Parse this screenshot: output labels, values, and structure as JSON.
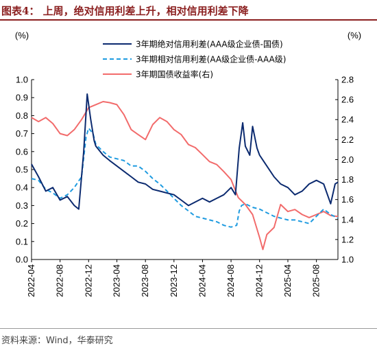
{
  "title": "图表4：  上周，绝对信用利差上升，相对信用利差下降",
  "source": "资料来源：Wind，华泰研究",
  "colors": {
    "abs_spread": "#0B2A6F",
    "rel_spread": "#1E9BE0",
    "gov_yield": "#F26B6B",
    "title": "#8B1F1F"
  },
  "chart_data": {
    "type": "line",
    "y_left_unit": "(%)",
    "y_right_unit": "(%)",
    "ylim_left": [
      0,
      1.0
    ],
    "ylim_right": [
      1.0,
      2.8
    ],
    "y_left_ticks": [
      "0.0",
      "0.1",
      "0.2",
      "0.3",
      "0.4",
      "0.5",
      "0.6",
      "0.7",
      "0.8",
      "0.9",
      "1.0"
    ],
    "y_right_ticks": [
      "1.0",
      "1.2",
      "1.4",
      "1.6",
      "1.8",
      "2.0",
      "2.2",
      "2.4",
      "2.6",
      "2.8"
    ],
    "x_range": [
      "2022-04",
      "2025-11"
    ],
    "x_ticks": [
      "2022-04",
      "2022-08",
      "2022-12",
      "2023-04",
      "2023-08",
      "2023-12",
      "2024-04",
      "2024-08",
      "2024-12",
      "2025-04",
      "2025-08"
    ],
    "legend_placement": "top-right",
    "series": [
      {
        "name": "3年期绝对信用利差(AAA级企业债-国债)",
        "axis": "left",
        "style": "solid",
        "points": [
          [
            "2022-04",
            0.53
          ],
          [
            "2022-05",
            0.46
          ],
          [
            "2022-06",
            0.38
          ],
          [
            "2022-07",
            0.4
          ],
          [
            "2022-08",
            0.33
          ],
          [
            "2022-09",
            0.35
          ],
          [
            "2022-10",
            0.3
          ],
          [
            "2022-10-20",
            0.28
          ],
          [
            "2022-11-10",
            0.6
          ],
          [
            "2022-11-25",
            0.92
          ],
          [
            "2022-12-10",
            0.78
          ],
          [
            "2022-12-25",
            0.66
          ],
          [
            "2023-01",
            0.63
          ],
          [
            "2023-02",
            0.58
          ],
          [
            "2023-03",
            0.55
          ],
          [
            "2023-04",
            0.52
          ],
          [
            "2023-05",
            0.49
          ],
          [
            "2023-06",
            0.46
          ],
          [
            "2023-07",
            0.43
          ],
          [
            "2023-08",
            0.42
          ],
          [
            "2023-09",
            0.39
          ],
          [
            "2023-10",
            0.38
          ],
          [
            "2023-11",
            0.37
          ],
          [
            "2023-12",
            0.36
          ],
          [
            "2024-01",
            0.33
          ],
          [
            "2024-02",
            0.3
          ],
          [
            "2024-03",
            0.32
          ],
          [
            "2024-04",
            0.34
          ],
          [
            "2024-05",
            0.32
          ],
          [
            "2024-06",
            0.34
          ],
          [
            "2024-07",
            0.36
          ],
          [
            "2024-08",
            0.4
          ],
          [
            "2024-08-20",
            0.36
          ],
          [
            "2024-09-05",
            0.62
          ],
          [
            "2024-09-20",
            0.76
          ],
          [
            "2024-10",
            0.63
          ],
          [
            "2024-10-20",
            0.58
          ],
          [
            "2024-11",
            0.74
          ],
          [
            "2024-11-20",
            0.62
          ],
          [
            "2024-12",
            0.58
          ],
          [
            "2025-01",
            0.52
          ],
          [
            "2025-02",
            0.46
          ],
          [
            "2025-03",
            0.42
          ],
          [
            "2025-04",
            0.4
          ],
          [
            "2025-05",
            0.36
          ],
          [
            "2025-06",
            0.38
          ],
          [
            "2025-07",
            0.42
          ],
          [
            "2025-08",
            0.44
          ],
          [
            "2025-09",
            0.42
          ],
          [
            "2025-10",
            0.31
          ],
          [
            "2025-10-20",
            0.42
          ],
          [
            "2025-11",
            0.43
          ]
        ]
      },
      {
        "name": "3年期相对信用利差(AA级企业债-AAA级)",
        "axis": "left",
        "style": "dashed",
        "points": [
          [
            "2022-04",
            0.45
          ],
          [
            "2022-05",
            0.44
          ],
          [
            "2022-06",
            0.39
          ],
          [
            "2022-07",
            0.37
          ],
          [
            "2022-08",
            0.34
          ],
          [
            "2022-09",
            0.36
          ],
          [
            "2022-10",
            0.4
          ],
          [
            "2022-11",
            0.46
          ],
          [
            "2022-11-20",
            0.68
          ],
          [
            "2022-12",
            0.73
          ],
          [
            "2022-12-20",
            0.7
          ],
          [
            "2023-01",
            0.64
          ],
          [
            "2023-02",
            0.6
          ],
          [
            "2023-03",
            0.57
          ],
          [
            "2023-04",
            0.56
          ],
          [
            "2023-05",
            0.55
          ],
          [
            "2023-06",
            0.52
          ],
          [
            "2023-07",
            0.52
          ],
          [
            "2023-08",
            0.49
          ],
          [
            "2023-09",
            0.45
          ],
          [
            "2023-10",
            0.42
          ],
          [
            "2023-11",
            0.38
          ],
          [
            "2023-12",
            0.34
          ],
          [
            "2024-01",
            0.3
          ],
          [
            "2024-02",
            0.27
          ],
          [
            "2024-03",
            0.24
          ],
          [
            "2024-04",
            0.23
          ],
          [
            "2024-05",
            0.22
          ],
          [
            "2024-06",
            0.21
          ],
          [
            "2024-07",
            0.19
          ],
          [
            "2024-08",
            0.18
          ],
          [
            "2024-08-25",
            0.19
          ],
          [
            "2024-09-05",
            0.27
          ],
          [
            "2024-09-15",
            0.3
          ],
          [
            "2024-10",
            0.31
          ],
          [
            "2024-11",
            0.29
          ],
          [
            "2024-12",
            0.28
          ],
          [
            "2025-01",
            0.26
          ],
          [
            "2025-02",
            0.24
          ],
          [
            "2025-03",
            0.23
          ],
          [
            "2025-04",
            0.22
          ],
          [
            "2025-05",
            0.22
          ],
          [
            "2025-06",
            0.21
          ],
          [
            "2025-07",
            0.2
          ],
          [
            "2025-08",
            0.24
          ],
          [
            "2025-09",
            0.28
          ],
          [
            "2025-10",
            0.25
          ],
          [
            "2025-11",
            0.23
          ]
        ]
      },
      {
        "name": "3年期国债收益率(右)",
        "axis": "right",
        "style": "solid",
        "points": [
          [
            "2022-04",
            2.42
          ],
          [
            "2022-05",
            2.38
          ],
          [
            "2022-06",
            2.42
          ],
          [
            "2022-07",
            2.36
          ],
          [
            "2022-08",
            2.26
          ],
          [
            "2022-09",
            2.24
          ],
          [
            "2022-10",
            2.3
          ],
          [
            "2022-11",
            2.4
          ],
          [
            "2022-12",
            2.52
          ],
          [
            "2023-01",
            2.55
          ],
          [
            "2023-02",
            2.58
          ],
          [
            "2023-03",
            2.57
          ],
          [
            "2023-04",
            2.55
          ],
          [
            "2023-05",
            2.45
          ],
          [
            "2023-06",
            2.3
          ],
          [
            "2023-07",
            2.25
          ],
          [
            "2023-08",
            2.2
          ],
          [
            "2023-09",
            2.35
          ],
          [
            "2023-10",
            2.42
          ],
          [
            "2023-11",
            2.38
          ],
          [
            "2023-12",
            2.3
          ],
          [
            "2024-01",
            2.25
          ],
          [
            "2024-02",
            2.15
          ],
          [
            "2024-03",
            2.12
          ],
          [
            "2024-04",
            2.05
          ],
          [
            "2024-05",
            1.98
          ],
          [
            "2024-06",
            1.95
          ],
          [
            "2024-07",
            1.88
          ],
          [
            "2024-08",
            1.8
          ],
          [
            "2024-09",
            1.62
          ],
          [
            "2024-10",
            1.55
          ],
          [
            "2024-11",
            1.45
          ],
          [
            "2024-12",
            1.22
          ],
          [
            "2024-12-15",
            1.1
          ],
          [
            "2025-01",
            1.25
          ],
          [
            "2025-02",
            1.32
          ],
          [
            "2025-03",
            1.55
          ],
          [
            "2025-04",
            1.48
          ],
          [
            "2025-05",
            1.5
          ],
          [
            "2025-06",
            1.45
          ],
          [
            "2025-07",
            1.42
          ],
          [
            "2025-08",
            1.45
          ],
          [
            "2025-09",
            1.48
          ],
          [
            "2025-10",
            1.44
          ],
          [
            "2025-11",
            1.43
          ]
        ]
      }
    ]
  }
}
